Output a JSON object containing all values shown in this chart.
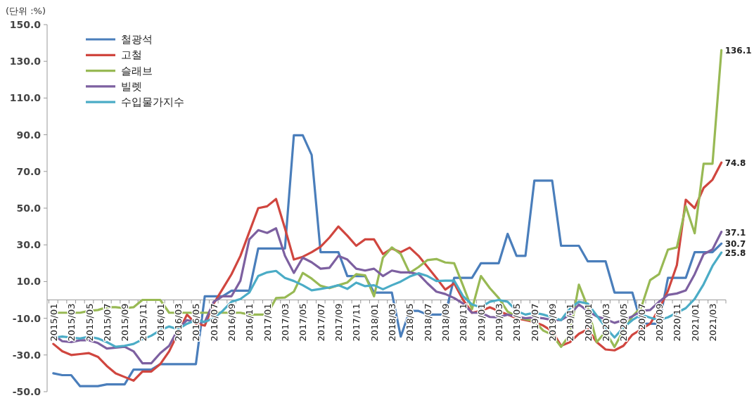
{
  "chart_data": {
    "type": "line",
    "ylabel": "(단위 :%)",
    "legend": "top left",
    "categories": [
      "2015/01",
      null,
      "2015/03",
      null,
      "2015/05",
      null,
      "2015/07",
      null,
      "2015/09",
      null,
      "2015/11",
      null,
      "2016/01",
      null,
      "2016/03",
      null,
      "2016/05",
      null,
      "2016/07",
      null,
      "2016/09",
      null,
      "2016/11",
      null,
      "2017/01",
      null,
      "2017/03",
      null,
      "2017/05",
      null,
      "2017/07",
      null,
      "2017/09",
      null,
      "2017/11",
      null,
      "2018/01",
      null,
      "2018/03",
      null,
      "2018/05",
      null,
      "2018/07",
      null,
      "2018/09",
      null,
      "2018/11",
      null,
      "2019/01",
      null,
      "2019/03",
      null,
      "2019/05",
      null,
      "2019/07",
      null,
      "2019/09",
      null,
      "2019/11",
      null,
      "2020/01",
      null,
      "2020/03",
      null,
      "2020/05",
      null,
      "2020/07",
      null,
      "2020/09",
      null,
      "2020/11",
      null,
      "2021/01",
      null,
      "2021/03",
      null
    ],
    "ylim": [
      -50,
      150
    ],
    "yticks": [
      {
        "value": 150,
        "label": "150.0"
      },
      {
        "value": 130,
        "label": "130.0"
      },
      {
        "value": 110,
        "label": "110.0"
      },
      {
        "value": 90,
        "label": "90.0"
      },
      {
        "value": 70,
        "label": "70.0"
      },
      {
        "value": 50,
        "label": "50.0"
      },
      {
        "value": 30,
        "label": "30.0"
      },
      {
        "value": 10,
        "label": "10.0"
      },
      {
        "value": -10,
        "label": "-10.0"
      },
      {
        "value": -30,
        "label": "-30.0"
      },
      {
        "value": -50,
        "label": "-50.0"
      }
    ],
    "series": [
      {
        "name": "철광석",
        "color": "#4a7ebb",
        "values": [
          -40,
          -41,
          -41,
          -47,
          -47,
          -47,
          -46,
          -46,
          -46,
          -38,
          -38,
          -38,
          -35,
          -35,
          -35,
          -35,
          -35,
          2,
          2,
          2,
          5,
          5,
          5,
          28,
          28,
          28,
          28,
          89.7,
          89.7,
          79,
          26,
          26,
          26,
          13,
          13,
          13,
          4,
          4,
          4,
          -20,
          -6,
          -6,
          -8,
          -8,
          -8,
          12,
          12,
          12,
          20,
          20,
          20,
          36,
          24,
          24,
          65,
          65,
          65,
          29.5,
          29.5,
          29.5,
          21,
          21,
          21,
          4,
          4,
          4,
          -13,
          -13,
          -13,
          12,
          12,
          12,
          26,
          26,
          26,
          30.7
        ],
        "value_labels": [
          null,
          null,
          null,
          null,
          null,
          null,
          null,
          null,
          null,
          null,
          null,
          null,
          null,
          null,
          null,
          null,
          null,
          null,
          null,
          null,
          null,
          null,
          null,
          null,
          null,
          null,
          null,
          null,
          null,
          null,
          null,
          null,
          null,
          null,
          null,
          null,
          null,
          null,
          null,
          null,
          null,
          null,
          null,
          null,
          null,
          null,
          null,
          null,
          null,
          null,
          null,
          null,
          null,
          null,
          null,
          null,
          null,
          null,
          null,
          null,
          null,
          null,
          null,
          null,
          null,
          null,
          null,
          null,
          null,
          null,
          null,
          null,
          null,
          null,
          null,
          "30.7"
        ]
      },
      {
        "name": "고철",
        "color": "#d0463f",
        "values": [
          -24,
          -28,
          -30,
          -29.5,
          -29,
          -31,
          -36,
          -40,
          -42,
          -44,
          -39,
          -39,
          -35,
          -28,
          -18,
          -8,
          -13,
          -14,
          -2,
          6,
          14,
          24,
          37,
          50,
          51,
          55,
          39,
          22,
          23.5,
          26,
          29,
          34,
          40,
          35,
          29.5,
          33,
          33,
          25,
          28,
          26,
          28.5,
          24,
          18,
          12,
          5.6,
          9,
          0,
          -7,
          -6,
          -4,
          -6,
          -8,
          -10,
          -11,
          -12,
          -14,
          -17,
          -25,
          -23,
          -18.5,
          -16,
          -23,
          -27,
          -27.5,
          -25,
          -19,
          -16,
          -13,
          -5,
          5,
          19,
          54.6,
          50,
          61,
          65.5,
          74.8
        ],
        "value_labels": [
          null,
          null,
          null,
          null,
          null,
          null,
          null,
          null,
          null,
          null,
          null,
          null,
          null,
          null,
          null,
          null,
          null,
          null,
          null,
          null,
          null,
          null,
          null,
          null,
          null,
          null,
          null,
          null,
          null,
          null,
          null,
          null,
          null,
          null,
          null,
          null,
          null,
          null,
          null,
          null,
          null,
          null,
          null,
          null,
          null,
          null,
          null,
          null,
          null,
          null,
          null,
          null,
          null,
          null,
          null,
          null,
          null,
          null,
          null,
          null,
          null,
          null,
          null,
          null,
          null,
          null,
          null,
          null,
          null,
          null,
          null,
          null,
          null,
          null,
          null,
          "74.8"
        ]
      },
      {
        "name": "슬래브",
        "color": "#98b954",
        "values": [
          -7,
          -7,
          -7,
          -7,
          -6,
          -5.5,
          -4,
          -4,
          -4.5,
          -4,
          0,
          0,
          0,
          -7,
          -7,
          -7,
          -7,
          -7,
          -7,
          -7,
          -7,
          -7,
          -8,
          -8,
          -8,
          1,
          1.3,
          4.5,
          14.7,
          11.6,
          7.7,
          6.4,
          8,
          9.5,
          14,
          13.4,
          2,
          23,
          28.6,
          25,
          14.7,
          17.9,
          21.7,
          22.3,
          20.4,
          20,
          7.7,
          -5,
          13,
          6.4,
          1,
          -6.4,
          -9,
          -10.5,
          -11.6,
          -16.7,
          -19,
          -25.6,
          -18.6,
          8.3,
          -4,
          -23,
          -17.4,
          -25.6,
          -16.7,
          -9,
          -4,
          10.8,
          14,
          27.4,
          28.6,
          51,
          36.3,
          74.2,
          74.2,
          136.1
        ],
        "value_labels": [
          null,
          null,
          null,
          null,
          null,
          null,
          null,
          null,
          null,
          null,
          null,
          null,
          null,
          null,
          null,
          null,
          null,
          null,
          null,
          null,
          null,
          null,
          null,
          null,
          null,
          null,
          null,
          null,
          null,
          null,
          null,
          null,
          null,
          null,
          null,
          null,
          null,
          null,
          null,
          null,
          null,
          null,
          null,
          null,
          null,
          null,
          null,
          null,
          null,
          null,
          null,
          null,
          null,
          null,
          null,
          null,
          null,
          null,
          null,
          null,
          null,
          null,
          null,
          null,
          null,
          null,
          null,
          null,
          null,
          null,
          null,
          null,
          null,
          null,
          null,
          "136.1"
        ]
      },
      {
        "name": "빌렛",
        "color": "#7d60a0",
        "values": [
          -19,
          -22.5,
          -23,
          -22,
          -22,
          -23.5,
          -26.5,
          -26,
          -25.5,
          -28,
          -34.5,
          -34.5,
          -29,
          -25,
          -16,
          -11,
          -12,
          -12,
          -1,
          2,
          2,
          10.5,
          33,
          38,
          36.5,
          39,
          24,
          14.7,
          23,
          20.5,
          17,
          17.5,
          24,
          22,
          17,
          16,
          17,
          13,
          16,
          15,
          15,
          14,
          9,
          4.5,
          3.2,
          1,
          -2,
          -7,
          -7,
          -9.3,
          -9.5,
          -8,
          -9,
          -10,
          -9.5,
          -10,
          -11,
          -11,
          -8,
          -2.5,
          -6,
          -9,
          -10.5,
          -12.5,
          -11,
          -9,
          -6,
          -5.5,
          -1,
          2.7,
          3.5,
          5.2,
          14,
          24.9,
          27.5,
          37.1
        ],
        "value_labels": [
          null,
          null,
          null,
          null,
          null,
          null,
          null,
          null,
          null,
          null,
          null,
          null,
          null,
          null,
          null,
          null,
          null,
          null,
          null,
          null,
          null,
          null,
          null,
          null,
          null,
          null,
          null,
          null,
          null,
          null,
          null,
          null,
          null,
          null,
          null,
          null,
          null,
          null,
          null,
          null,
          null,
          null,
          null,
          null,
          null,
          null,
          null,
          null,
          null,
          null,
          null,
          null,
          null,
          null,
          null,
          null,
          null,
          null,
          null,
          null,
          null,
          null,
          null,
          null,
          null,
          null,
          null,
          null,
          null,
          null,
          null,
          null,
          null,
          null,
          null,
          "37.1"
        ]
      },
      {
        "name": "수입물가지수",
        "color": "#4bacc6",
        "values": [
          -20.5,
          -20,
          -20.5,
          -21,
          -20,
          -21,
          -23,
          -25.5,
          -25,
          -24,
          -21.5,
          -19.5,
          -16.5,
          -14.5,
          -16,
          -13,
          -11,
          -12,
          -10,
          -6,
          -1,
          0.5,
          4,
          13,
          15,
          15.8,
          12,
          10.3,
          8,
          5.2,
          6,
          6.8,
          8,
          6,
          9.4,
          7.5,
          8,
          5.8,
          8,
          10,
          12.7,
          14.5,
          13,
          10.3,
          10.5,
          10.5,
          2,
          -2.5,
          -4,
          -1,
          0,
          -1,
          -6,
          -8,
          -7,
          -8,
          -9.5,
          -11,
          -4.5,
          -1,
          -2,
          -8.5,
          -15,
          -20.5,
          -15,
          -11,
          -8,
          -9.7,
          -11,
          -9.5,
          -7,
          -4.5,
          0.5,
          8.5,
          18.5,
          25.8
        ],
        "value_labels": [
          null,
          null,
          null,
          null,
          null,
          null,
          null,
          null,
          null,
          null,
          null,
          null,
          null,
          null,
          null,
          null,
          null,
          null,
          null,
          null,
          null,
          null,
          null,
          null,
          null,
          null,
          null,
          null,
          null,
          null,
          null,
          null,
          null,
          null,
          null,
          null,
          null,
          null,
          null,
          null,
          null,
          null,
          null,
          null,
          null,
          null,
          null,
          null,
          null,
          null,
          null,
          null,
          null,
          null,
          null,
          null,
          null,
          null,
          null,
          null,
          null,
          null,
          null,
          null,
          null,
          null,
          null,
          null,
          null,
          null,
          null,
          null,
          null,
          null,
          null,
          "25.8"
        ]
      }
    ]
  }
}
